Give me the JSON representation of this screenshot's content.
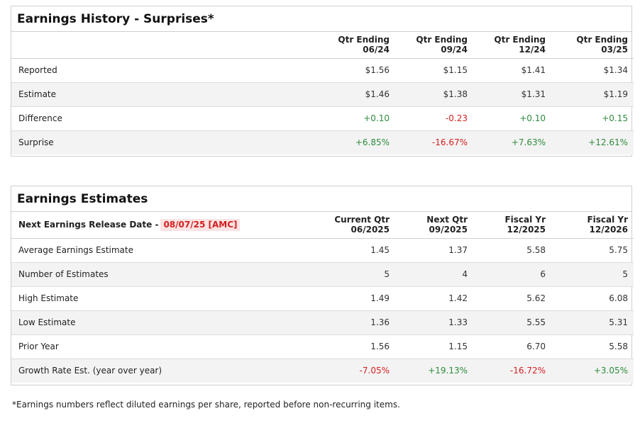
{
  "earnings_history": {
    "title": "Earnings History - Surprises*",
    "columns": [
      {
        "line1": "Qtr Ending",
        "line2": "06/24"
      },
      {
        "line1": "Qtr Ending",
        "line2": "09/24"
      },
      {
        "line1": "Qtr Ending",
        "line2": "12/24"
      },
      {
        "line1": "Qtr Ending",
        "line2": "03/25"
      }
    ],
    "rows": [
      {
        "label": "Reported",
        "values": [
          "$1.56",
          "$1.15",
          "$1.41",
          "$1.34"
        ]
      },
      {
        "label": "Estimate",
        "values": [
          "$1.46",
          "$1.38",
          "$1.31",
          "$1.19"
        ]
      },
      {
        "label": "Difference",
        "values": [
          "+0.10",
          "-0.23",
          "+0.10",
          "+0.15"
        ]
      },
      {
        "label": "Surprise",
        "values": [
          "+6.85%",
          "-16.67%",
          "+7.63%",
          "+12.61%"
        ]
      }
    ]
  },
  "earnings_estimates": {
    "title": "Earnings Estimates",
    "release_label": "Next Earnings Release Date -",
    "release_date": "08/07/25 [AMC]",
    "columns": [
      {
        "line1": "Current Qtr",
        "line2": "06/2025"
      },
      {
        "line1": "Next Qtr",
        "line2": "09/2025"
      },
      {
        "line1": "Fiscal Yr",
        "line2": "12/2025"
      },
      {
        "line1": "Fiscal Yr",
        "line2": "12/2026"
      }
    ],
    "rows": [
      {
        "label": "Average Earnings Estimate",
        "values": [
          "1.45",
          "1.37",
          "5.58",
          "5.75"
        ]
      },
      {
        "label": "Number of Estimates",
        "values": [
          "5",
          "4",
          "6",
          "5"
        ]
      },
      {
        "label": "High Estimate",
        "values": [
          "1.49",
          "1.42",
          "5.62",
          "6.08"
        ]
      },
      {
        "label": "Low Estimate",
        "values": [
          "1.36",
          "1.33",
          "5.55",
          "5.31"
        ]
      },
      {
        "label": "Prior Year",
        "values": [
          "1.56",
          "1.15",
          "6.70",
          "5.58"
        ]
      },
      {
        "label": "Growth Rate Est. (year over year)",
        "values": [
          "-7.05%",
          "+19.13%",
          "-16.72%",
          "+3.05%"
        ]
      }
    ]
  },
  "footnote": "*Earnings numbers reflect diluted earnings per share, reported before non-recurring items.",
  "colors": {
    "positive": "#2e8b3d",
    "negative": "#d42020",
    "row_shade": "#f3f3f3",
    "border": "#cfcfcf"
  }
}
